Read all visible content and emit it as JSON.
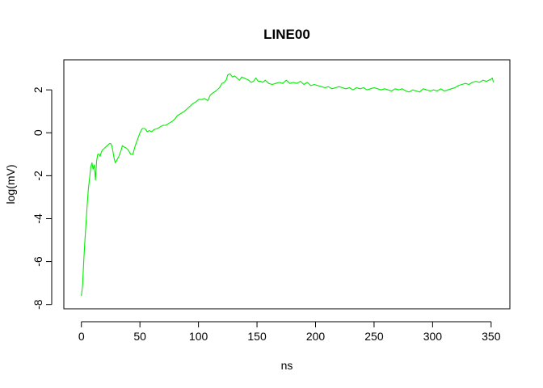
{
  "chart_data": {
    "type": "line",
    "title": "LINE00",
    "xlabel": "ns",
    "ylabel": "log(mV)",
    "xlim": [
      -15,
      366
    ],
    "ylim": [
      -8.2,
      3.4
    ],
    "x_ticks": [
      0,
      50,
      100,
      150,
      200,
      250,
      300,
      350
    ],
    "x_tick_labels": [
      "0",
      "50",
      "100",
      "150",
      "200",
      "250",
      "300",
      "350"
    ],
    "y_ticks": [
      -8,
      -6,
      -4,
      -2,
      0,
      2
    ],
    "y_tick_labels": [
      "-8",
      "-6",
      "-4",
      "-2",
      "0",
      "2"
    ],
    "grid": false,
    "legend": "none",
    "series": [
      {
        "color": "#00ee00",
        "x": [
          0,
          1,
          2,
          3,
          4,
          5,
          6,
          7,
          8,
          9,
          10,
          11,
          12,
          13,
          14,
          15,
          16,
          17,
          18,
          20,
          22,
          24,
          25,
          26,
          27,
          28,
          29,
          30,
          32,
          34,
          35,
          36,
          38,
          40,
          42,
          44,
          45,
          46,
          48,
          50,
          52,
          54,
          55,
          56,
          58,
          60,
          62,
          65,
          68,
          70,
          72,
          75,
          78,
          80,
          82,
          85,
          88,
          90,
          92,
          95,
          98,
          100,
          103,
          105,
          108,
          110,
          112,
          115,
          118,
          120,
          122,
          124,
          125,
          127,
          129,
          131,
          133,
          135,
          137,
          139,
          141,
          143,
          145,
          147,
          149,
          151,
          153,
          155,
          157,
          160,
          163,
          166,
          169,
          172,
          175,
          178,
          181,
          184,
          187,
          190,
          193,
          196,
          199,
          202,
          205,
          208,
          211,
          214,
          217,
          220,
          223,
          226,
          229,
          232,
          235,
          238,
          241,
          244,
          247,
          250,
          253,
          256,
          259,
          262,
          265,
          268,
          271,
          274,
          277,
          280,
          283,
          286,
          289,
          292,
          295,
          298,
          301,
          304,
          307,
          310,
          313,
          316,
          319,
          322,
          325,
          328,
          331,
          334,
          337,
          340,
          343,
          346,
          348,
          350,
          351,
          352
        ],
        "values": [
          -7.6,
          -7.1,
          -6.0,
          -5.0,
          -4.2,
          -3.3,
          -2.6,
          -2.1,
          -1.6,
          -1.4,
          -1.7,
          -1.5,
          -2.2,
          -1.3,
          -1.0,
          -1.0,
          -1.1,
          -0.9,
          -0.8,
          -0.7,
          -0.6,
          -0.5,
          -0.5,
          -0.6,
          -0.9,
          -1.2,
          -1.4,
          -1.3,
          -1.1,
          -0.8,
          -0.6,
          -0.65,
          -0.7,
          -0.8,
          -1.0,
          -1.0,
          -0.8,
          -0.6,
          -0.3,
          0.0,
          0.2,
          0.2,
          0.15,
          0.05,
          0.1,
          0.05,
          0.15,
          0.2,
          0.3,
          0.35,
          0.35,
          0.45,
          0.55,
          0.65,
          0.8,
          0.9,
          1.0,
          1.1,
          1.2,
          1.35,
          1.45,
          1.55,
          1.55,
          1.6,
          1.5,
          1.75,
          1.85,
          1.95,
          2.1,
          2.3,
          2.35,
          2.5,
          2.7,
          2.75,
          2.6,
          2.65,
          2.55,
          2.45,
          2.6,
          2.55,
          2.5,
          2.45,
          2.35,
          2.4,
          2.55,
          2.4,
          2.4,
          2.35,
          2.45,
          2.3,
          2.25,
          2.3,
          2.35,
          2.3,
          2.45,
          2.3,
          2.35,
          2.3,
          2.4,
          2.25,
          2.35,
          2.2,
          2.25,
          2.2,
          2.15,
          2.1,
          2.15,
          2.05,
          2.1,
          2.15,
          2.1,
          2.05,
          2.1,
          2.0,
          2.1,
          2.05,
          2.1,
          2.0,
          2.05,
          2.1,
          2.05,
          2.0,
          2.05,
          2.0,
          1.95,
          2.05,
          2.0,
          2.05,
          1.95,
          1.9,
          2.0,
          1.95,
          1.9,
          2.05,
          2.0,
          1.95,
          2.0,
          1.95,
          2.05,
          1.95,
          2.0,
          2.05,
          2.1,
          2.2,
          2.25,
          2.3,
          2.25,
          2.35,
          2.4,
          2.35,
          2.45,
          2.4,
          2.45,
          2.5,
          2.55,
          2.35
        ]
      }
    ]
  }
}
